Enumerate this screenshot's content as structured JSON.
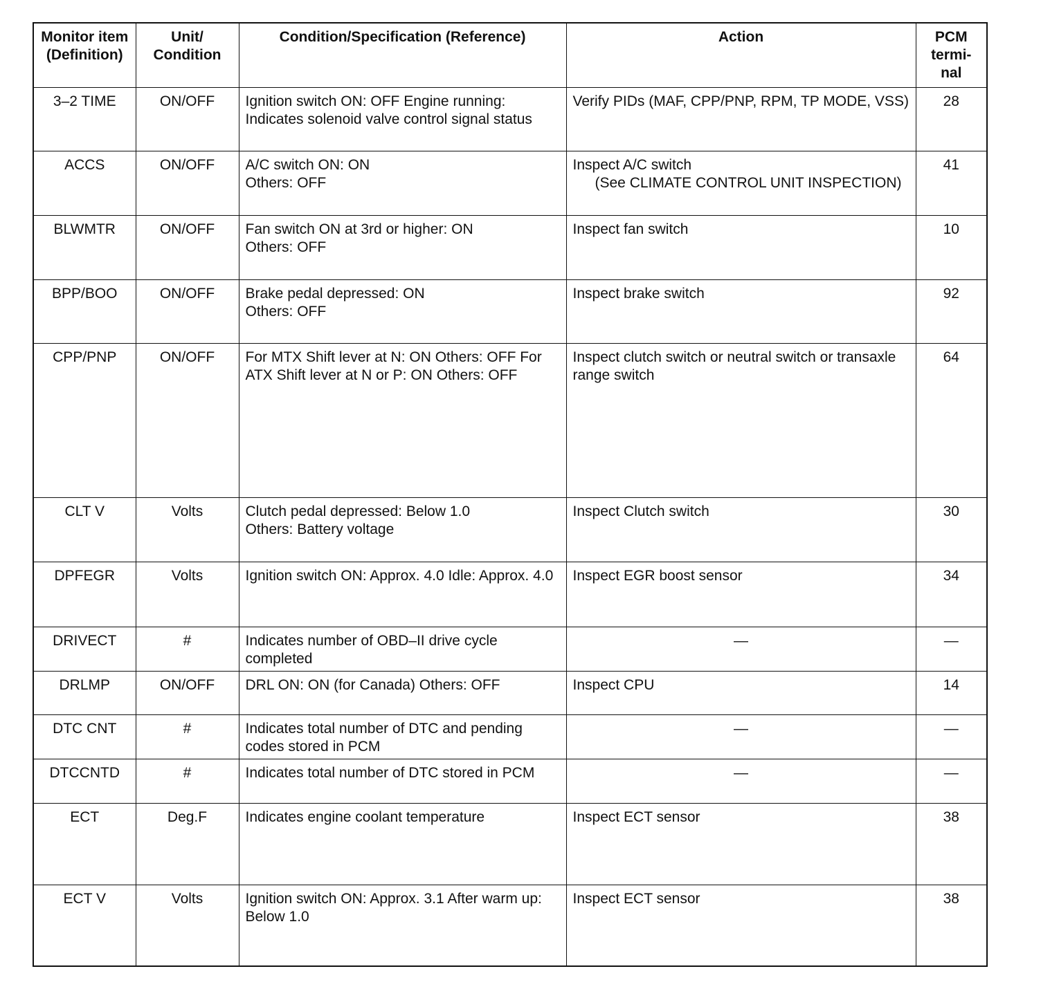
{
  "headers": [
    "Monitor item (Definition)",
    "Unit/ Condition",
    "Condition/Specification (Reference)",
    "Action",
    "PCM termi-nal"
  ],
  "rows": [
    {
      "item": "3–2 TIME",
      "unit": "ON/OFF",
      "condition": "Ignition switch ON: OFF Engine running: Indicates solenoid valve control signal status",
      "action": "Verify PIDs (MAF, CPP/PNP, RPM, TP MODE, VSS)",
      "note": "",
      "terminal": "28"
    },
    {
      "item": "ACCS",
      "unit": "ON/OFF",
      "condition": "A/C switch ON: ON\nOthers: OFF",
      "action": "Inspect A/C switch",
      "note": "(See CLIMATE CONTROL  UNIT INSPECTION)",
      "terminal": "41"
    },
    {
      "item": "BLWMTR",
      "unit": "ON/OFF",
      "condition": "Fan switch ON at 3rd or higher: ON\nOthers: OFF",
      "action": "Inspect fan switch",
      "note": "",
      "terminal": "10"
    },
    {
      "item": "BPP/BOO",
      "unit": "ON/OFF",
      "condition": "Brake pedal depressed: ON\nOthers: OFF",
      "action": "Inspect brake switch",
      "note": "",
      "terminal": "92"
    },
    {
      "item": "CPP/PNP",
      "unit": "ON/OFF",
      "condition": "For MTX Shift lever at N: ON Others: OFF For ATX Shift lever at N or P: ON Others: OFF",
      "action": "Inspect clutch switch or neutral switch or transaxle range switch",
      "note": "",
      "terminal": "64"
    },
    {
      "item": "CLT V",
      "unit": "Volts",
      "condition": "Clutch pedal depressed: Below 1.0\nOthers: Battery voltage",
      "action": "Inspect Clutch switch",
      "note": "",
      "terminal": "30"
    },
    {
      "item": "DPFEGR",
      "unit": "Volts",
      "condition": "Ignition switch ON: Approx. 4.0 Idle: Approx. 4.0",
      "action": "Inspect EGR boost sensor",
      "note": "",
      "terminal": "34"
    },
    {
      "item": "DRIVECT",
      "unit": "#",
      "condition": "Indicates number of OBD–II drive cycle completed",
      "action": "—",
      "note": "",
      "terminal": "—"
    },
    {
      "item": "DRLMP",
      "unit": "ON/OFF",
      "condition": "DRL ON: ON (for Canada) Others: OFF",
      "action": "Inspect CPU",
      "note": "",
      "terminal": "14"
    },
    {
      "item": "DTC CNT",
      "unit": "#",
      "condition": "Indicates total number of DTC and pending codes stored in PCM",
      "action": "—",
      "note": "",
      "terminal": "—"
    },
    {
      "item": "DTCCNTD",
      "unit": "#",
      "condition": "Indicates total number of DTC stored in PCM",
      "action": "—",
      "note": "",
      "terminal": "—"
    },
    {
      "item": "ECT",
      "unit": "Deg.F",
      "condition": "Indicates engine coolant temperature",
      "action": "Inspect ECT sensor",
      "note": "",
      "terminal": "38"
    },
    {
      "item": "ECT V",
      "unit": "Volts",
      "condition": "Ignition switch ON: Approx. 3.1 After warm up: Below 1.0",
      "action": "Inspect ECT sensor",
      "note": "",
      "terminal": "38"
    }
  ]
}
